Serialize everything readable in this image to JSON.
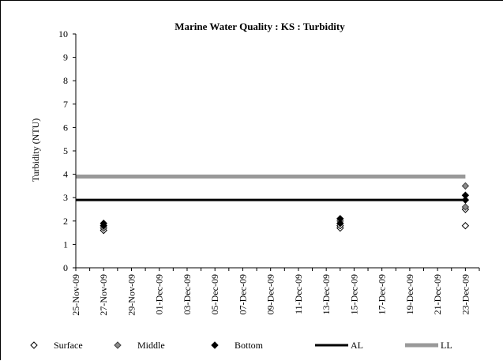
{
  "chart_data": {
    "type": "scatter",
    "title": "Marine Water Quality : KS  : Turbidity",
    "ylabel": "Turbidity (NTU)",
    "xlabel": "",
    "ylim": [
      0,
      10
    ],
    "y_ticks": [
      "0",
      "1",
      "2",
      "3",
      "4",
      "5",
      "6",
      "7",
      "8",
      "9",
      "10"
    ],
    "x_range": [
      "2009-11-25",
      "2009-12-24"
    ],
    "x_ticks": [
      {
        "date": "2009-11-25",
        "label": "25-Nov-09"
      },
      {
        "date": "2009-11-27",
        "label": "27-Nov-09"
      },
      {
        "date": "2009-11-29",
        "label": "29-Nov-09"
      },
      {
        "date": "2009-12-01",
        "label": "01-Dec-09"
      },
      {
        "date": "2009-12-03",
        "label": "03-Dec-09"
      },
      {
        "date": "2009-12-05",
        "label": "05-Dec-09"
      },
      {
        "date": "2009-12-07",
        "label": "07-Dec-09"
      },
      {
        "date": "2009-12-09",
        "label": "09-Dec-09"
      },
      {
        "date": "2009-12-11",
        "label": "11-Dec-09"
      },
      {
        "date": "2009-12-13",
        "label": "13-Dec-09"
      },
      {
        "date": "2009-12-15",
        "label": "15-Dec-09"
      },
      {
        "date": "2009-12-17",
        "label": "17-Dec-09"
      },
      {
        "date": "2009-12-19",
        "label": "19-Dec-09"
      },
      {
        "date": "2009-12-21",
        "label": "21-Dec-09"
      },
      {
        "date": "2009-12-23",
        "label": "23-Dec-09"
      }
    ],
    "grid": false,
    "legend_position": "bottom",
    "series": [
      {
        "name": "Surface",
        "marker": "diamond-open",
        "color": "#000000",
        "points": [
          {
            "x": "2009-11-27",
            "y": 1.6
          },
          {
            "x": "2009-11-27",
            "y": 1.7
          },
          {
            "x": "2009-12-14",
            "y": 1.7
          },
          {
            "x": "2009-12-14",
            "y": 1.8
          },
          {
            "x": "2009-12-23",
            "y": 1.8
          },
          {
            "x": "2009-12-23",
            "y": 2.5
          }
        ]
      },
      {
        "name": "Middle",
        "marker": "diamond-gray",
        "color": "#808080",
        "points": [
          {
            "x": "2009-11-27",
            "y": 1.7
          },
          {
            "x": "2009-11-27",
            "y": 1.8
          },
          {
            "x": "2009-12-14",
            "y": 1.9
          },
          {
            "x": "2009-12-14",
            "y": 2.0
          },
          {
            "x": "2009-12-23",
            "y": 2.6
          },
          {
            "x": "2009-12-23",
            "y": 3.5
          }
        ]
      },
      {
        "name": "Bottom",
        "marker": "diamond-filled",
        "color": "#000000",
        "points": [
          {
            "x": "2009-11-27",
            "y": 1.8
          },
          {
            "x": "2009-11-27",
            "y": 1.9
          },
          {
            "x": "2009-12-14",
            "y": 1.9
          },
          {
            "x": "2009-12-14",
            "y": 2.1
          },
          {
            "x": "2009-12-23",
            "y": 2.9
          },
          {
            "x": "2009-12-23",
            "y": 3.1
          }
        ]
      },
      {
        "name": "AL",
        "marker": "line",
        "color": "#000000",
        "points": [
          {
            "x": "2009-11-25",
            "y": 2.9
          },
          {
            "x": "2009-12-23",
            "y": 2.9
          }
        ]
      },
      {
        "name": "LL",
        "marker": "line",
        "color": "#999999",
        "points": [
          {
            "x": "2009-11-25",
            "y": 3.9
          },
          {
            "x": "2009-12-23",
            "y": 3.9
          }
        ]
      }
    ]
  }
}
